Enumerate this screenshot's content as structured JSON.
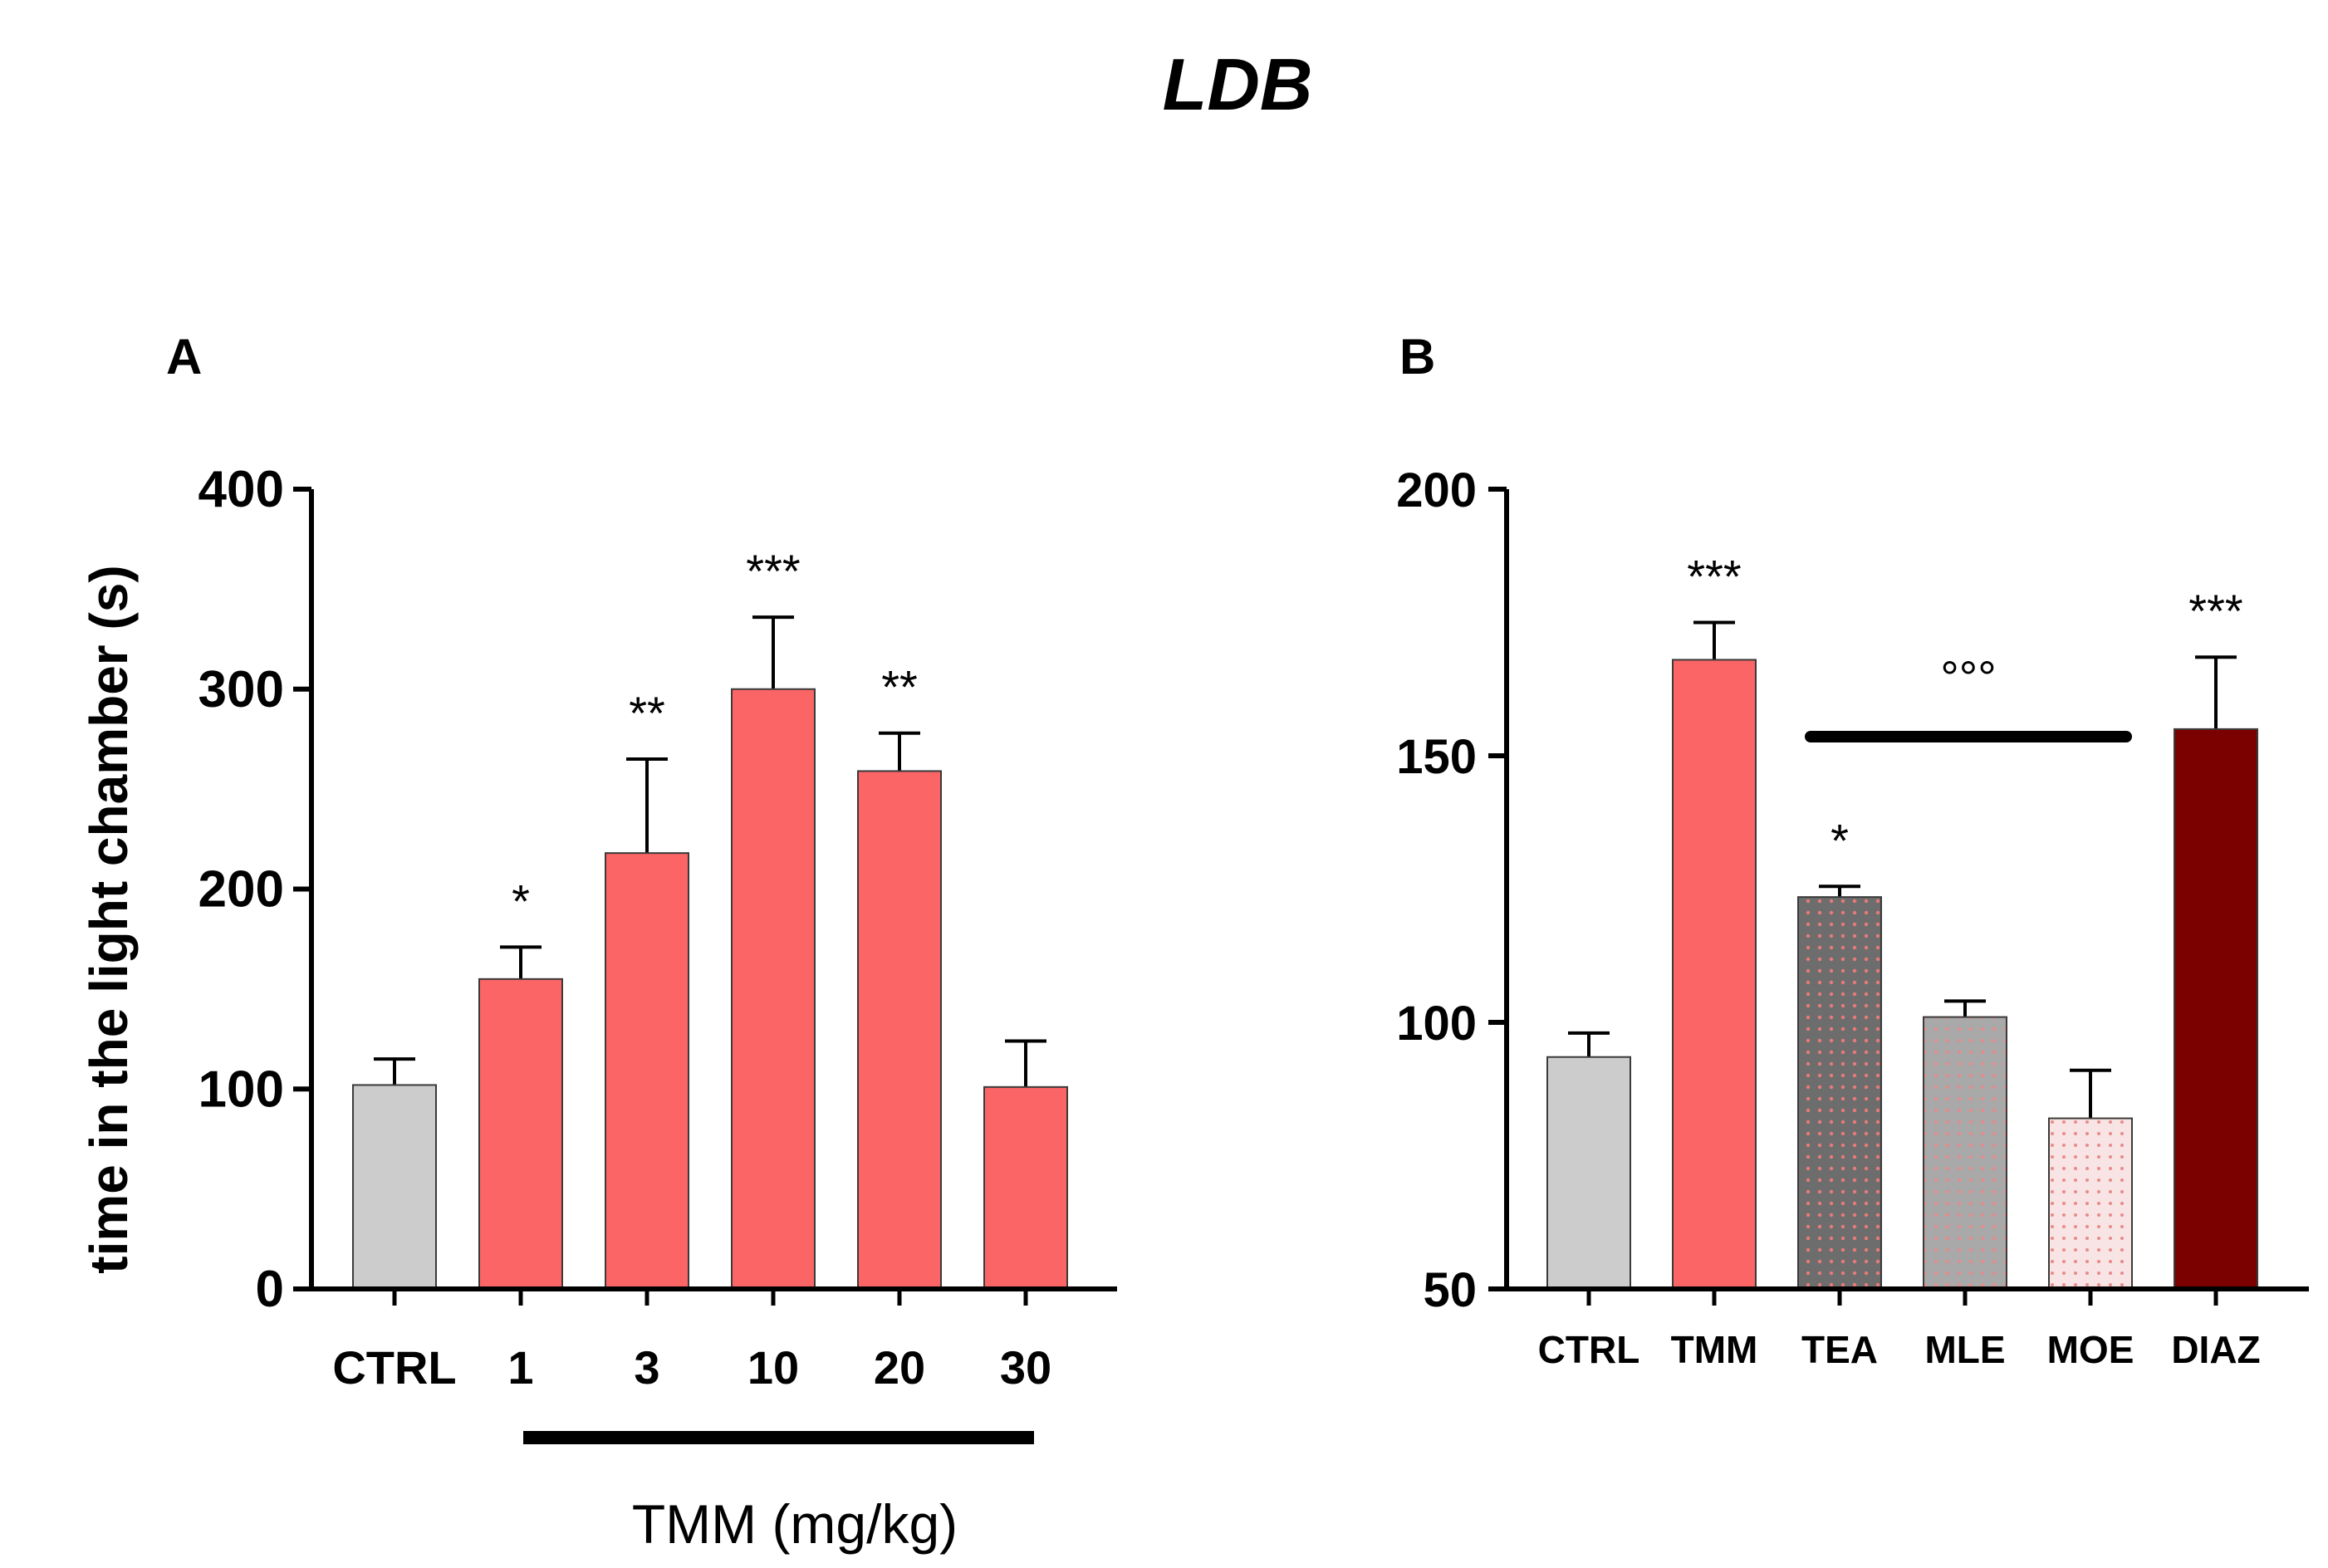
{
  "figure_title": "LDB",
  "colors": {
    "ctrl": "#cccccc",
    "tmm": "#fb6566",
    "tea": "#6d6d6d",
    "mle": "#a9a9a9",
    "moe": "#f6dfdf",
    "diaz": "#7b0000",
    "bar_edge": "#3a3a3a",
    "pattern_dot": "#e87a7a"
  },
  "chart_data": [
    {
      "type": "bar",
      "panel_label": "A",
      "ylabel": "time in the light chamber (s)",
      "xlabel": "TMM (mg/kg)",
      "ylim": [
        0,
        400
      ],
      "yticks": [
        0,
        100,
        200,
        300,
        400
      ],
      "categories": [
        "CTRL",
        "1",
        "3",
        "10",
        "20",
        "30"
      ],
      "values": [
        102,
        155,
        218,
        300,
        259,
        101
      ],
      "errors": [
        13,
        16,
        47,
        36,
        19,
        23
      ],
      "significance": [
        "",
        "*",
        "**",
        "***",
        "**",
        ""
      ],
      "fills": [
        "ctrl",
        "tmm",
        "tmm",
        "tmm",
        "tmm",
        "tmm"
      ]
    },
    {
      "type": "bar",
      "panel_label": "B",
      "ylim": [
        50,
        200
      ],
      "yticks": [
        50,
        100,
        150,
        200
      ],
      "categories": [
        "CTRL",
        "TMM",
        "TEA",
        "MLE",
        "MOE",
        "DIAZ"
      ],
      "values": [
        93.5,
        168,
        123.5,
        101,
        82,
        155
      ],
      "errors": [
        4.5,
        7,
        2,
        3,
        9,
        13.5
      ],
      "significance": [
        "",
        "***",
        "*",
        "",
        "",
        "***"
      ],
      "fills": [
        "ctrl",
        "tmm",
        "tea",
        "mle",
        "moe",
        "diaz"
      ],
      "bracket_label": "°°°"
    }
  ]
}
